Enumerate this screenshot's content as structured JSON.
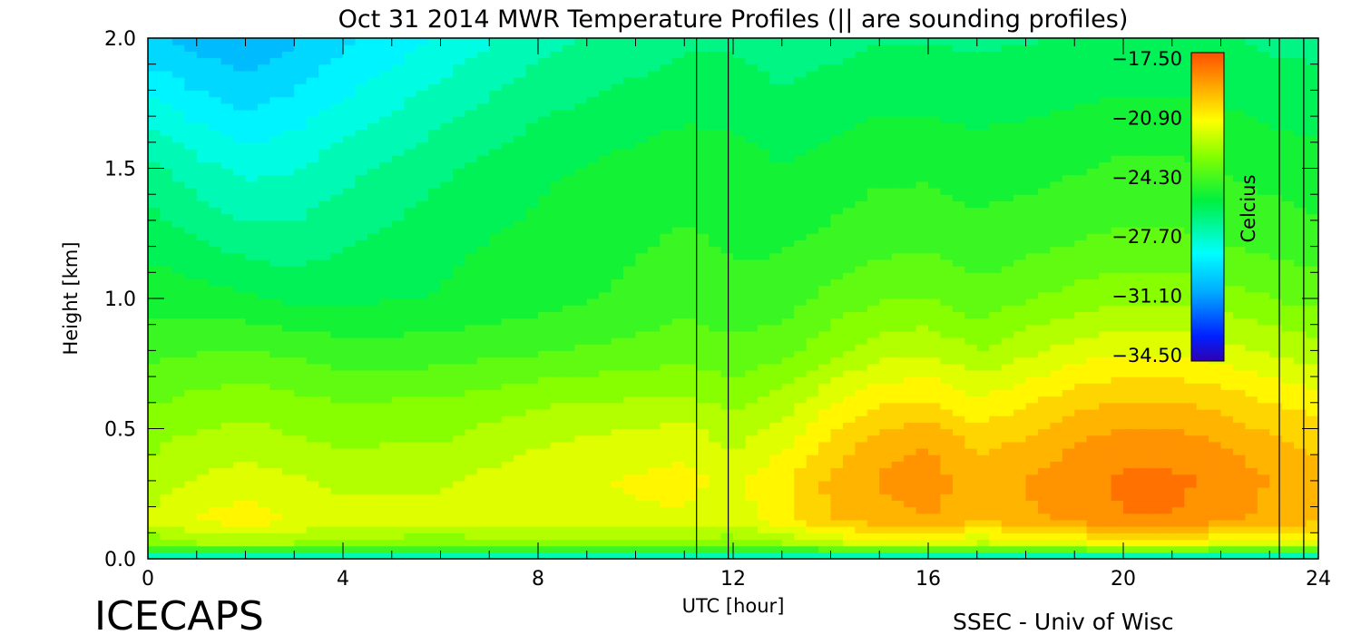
{
  "chart_data": {
    "type": "heatmap",
    "title": "Oct 31 2014 MWR Temperature Profiles (|| are sounding profiles)",
    "xlabel": "UTC [hour]",
    "ylabel": "Height [km]",
    "xlim": [
      0,
      24
    ],
    "ylim": [
      0,
      2.0
    ],
    "x_ticks": [
      "0",
      "4",
      "8",
      "12",
      "16",
      "20",
      "24"
    ],
    "y_ticks": [
      "0.0",
      "0.5",
      "1.0",
      "1.5",
      "2.0"
    ],
    "colorbar": {
      "label": "Celcius",
      "range": [
        -34.5,
        -17.5
      ],
      "ticks": [
        "-17.50",
        "-20.90",
        "-24.30",
        "-27.70",
        "-31.10",
        "-34.50"
      ],
      "placement": "top-right inside plot"
    },
    "sounding_profiles": [
      {
        "start": 11.25,
        "end": 11.9
      },
      {
        "start": 23.2,
        "end": 23.7
      }
    ],
    "time_hours": [
      0,
      1,
      2,
      3,
      4,
      6,
      8,
      10,
      11,
      12,
      13,
      14,
      15,
      16,
      17,
      18,
      19,
      20,
      21,
      22,
      23,
      24
    ],
    "heights_km": [
      0.0,
      0.05,
      0.15,
      0.3,
      0.45,
      0.6,
      0.8,
      1.0,
      1.2,
      1.5,
      1.8,
      2.0
    ],
    "temperature_c": [
      [
        -29.0,
        -29.0,
        -29.0,
        -29.0,
        -29.0,
        -29.0,
        -29.0,
        -29.0,
        -29.0,
        -29.0,
        -29.0,
        -29.0,
        -29.0,
        -29.0,
        -29.0,
        -29.0,
        -29.0,
        -29.0,
        -29.0,
        -29.0,
        -29.0,
        -29.0
      ],
      [
        -23.5,
        -23.0,
        -22.8,
        -23.0,
        -23.3,
        -23.5,
        -23.3,
        -23.2,
        -23.2,
        -23.5,
        -23.0,
        -22.5,
        -22.0,
        -22.0,
        -22.5,
        -22.2,
        -21.8,
        -21.5,
        -21.5,
        -21.8,
        -22.0,
        -22.0
      ],
      [
        -22.0,
        -21.3,
        -21.0,
        -21.4,
        -21.8,
        -21.8,
        -21.6,
        -21.5,
        -21.5,
        -21.8,
        -21.0,
        -20.0,
        -19.5,
        -19.3,
        -19.8,
        -19.5,
        -19.0,
        -18.6,
        -18.6,
        -19.0,
        -19.5,
        -19.8
      ],
      [
        -22.5,
        -22.0,
        -21.8,
        -22.0,
        -22.3,
        -22.2,
        -21.6,
        -21.3,
        -21.2,
        -21.6,
        -20.8,
        -19.8,
        -19.2,
        -18.9,
        -19.6,
        -19.2,
        -18.8,
        -18.4,
        -18.4,
        -18.7,
        -19.3,
        -19.6
      ],
      [
        -23.0,
        -22.6,
        -22.4,
        -22.7,
        -22.9,
        -22.8,
        -22.2,
        -21.8,
        -21.6,
        -22.3,
        -21.6,
        -20.5,
        -19.6,
        -19.3,
        -20.2,
        -19.9,
        -19.3,
        -19.0,
        -19.0,
        -19.3,
        -19.8,
        -20.2
      ],
      [
        -23.6,
        -23.3,
        -23.1,
        -23.3,
        -23.5,
        -23.4,
        -22.9,
        -22.7,
        -22.6,
        -23.0,
        -22.5,
        -21.5,
        -20.8,
        -20.6,
        -21.2,
        -20.8,
        -20.2,
        -19.9,
        -19.9,
        -20.2,
        -20.7,
        -21.0
      ],
      [
        -24.4,
        -24.3,
        -24.2,
        -24.4,
        -24.6,
        -24.6,
        -24.3,
        -24.0,
        -23.8,
        -24.0,
        -23.8,
        -23.0,
        -22.4,
        -22.2,
        -22.8,
        -22.3,
        -21.8,
        -21.5,
        -21.5,
        -21.8,
        -22.2,
        -22.5
      ],
      [
        -25.2,
        -25.3,
        -25.5,
        -25.8,
        -25.8,
        -25.6,
        -25.2,
        -24.8,
        -24.5,
        -24.8,
        -24.6,
        -24.0,
        -23.6,
        -23.5,
        -24.0,
        -23.6,
        -23.2,
        -23.0,
        -23.0,
        -23.2,
        -23.5,
        -23.8
      ],
      [
        -25.8,
        -26.2,
        -26.6,
        -26.7,
        -26.4,
        -25.8,
        -25.4,
        -25.0,
        -24.8,
        -25.0,
        -25.0,
        -24.7,
        -24.4,
        -24.3,
        -24.6,
        -24.4,
        -24.2,
        -24.0,
        -24.0,
        -24.2,
        -24.4,
        -24.6
      ],
      [
        -26.8,
        -27.5,
        -28.0,
        -27.8,
        -27.3,
        -26.5,
        -25.8,
        -25.4,
        -25.2,
        -25.3,
        -25.6,
        -25.4,
        -25.1,
        -25.1,
        -25.3,
        -25.2,
        -25.0,
        -24.8,
        -24.8,
        -25.0,
        -25.2,
        -25.4
      ],
      [
        -28.6,
        -29.2,
        -29.6,
        -29.2,
        -28.6,
        -27.6,
        -26.7,
        -26.2,
        -26.0,
        -26.0,
        -26.3,
        -26.1,
        -25.9,
        -25.9,
        -26.0,
        -25.9,
        -25.8,
        -25.7,
        -25.7,
        -25.8,
        -26.0,
        -26.1
      ],
      [
        -29.8,
        -30.2,
        -30.4,
        -30.0,
        -29.4,
        -28.4,
        -27.3,
        -26.8,
        -26.5,
        -26.5,
        -26.8,
        -26.6,
        -26.4,
        -26.4,
        -26.5,
        -26.4,
        -26.3,
        -26.2,
        -26.2,
        -26.3,
        -26.5,
        -26.6
      ]
    ]
  },
  "footer": {
    "brand": "ICECAPS",
    "credit": "SSEC - Univ of Wisc"
  }
}
